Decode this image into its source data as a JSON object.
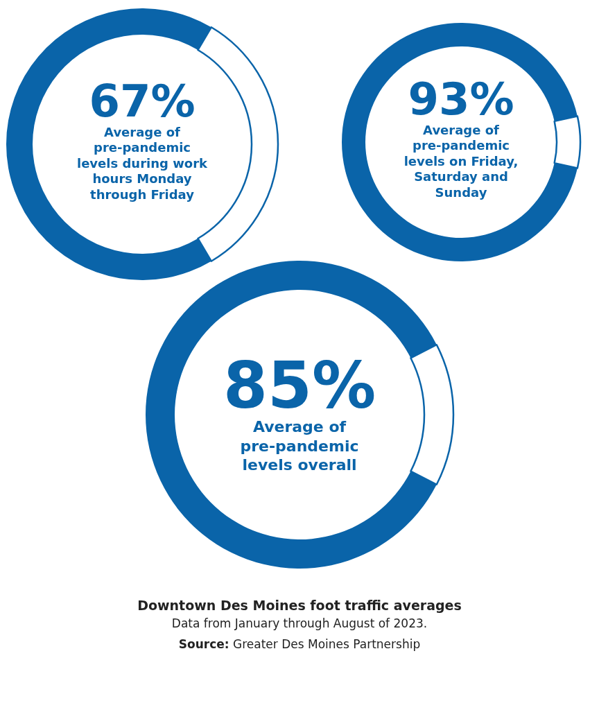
{
  "chart_data": [
    {
      "type": "donut",
      "categories": [
        null,
        null
      ],
      "values": [
        67,
        33
      ],
      "colors": [
        "#0a64a9",
        "#ffffff"
      ],
      "value_labels": [
        "67%",
        null
      ],
      "annotations": [
        "Average of\npre-pandemic\nlevels during work\nhours Monday\nthrough Friday"
      ]
    },
    {
      "type": "donut",
      "categories": [
        null,
        null
      ],
      "values": [
        93,
        7
      ],
      "colors": [
        "#0a64a9",
        "#ffffff"
      ],
      "value_labels": [
        "93%",
        null
      ],
      "annotations": [
        "Average of\npre-pandemic\nlevels on Friday,\nSaturday and\nSunday"
      ]
    },
    {
      "type": "donut",
      "categories": [
        null,
        null
      ],
      "values": [
        85,
        15
      ],
      "colors": [
        "#0a64a9",
        "#ffffff"
      ],
      "value_labels": [
        "85%",
        null
      ],
      "annotations": [
        "Average of\npre-pandemic\nlevels overall",
        "Source: Greater Des Moines Partnership"
      ],
      "title": "Downtown Des Moines foot traffic averages",
      "subtitle": "Data from January through August of 2023."
    }
  ]
}
